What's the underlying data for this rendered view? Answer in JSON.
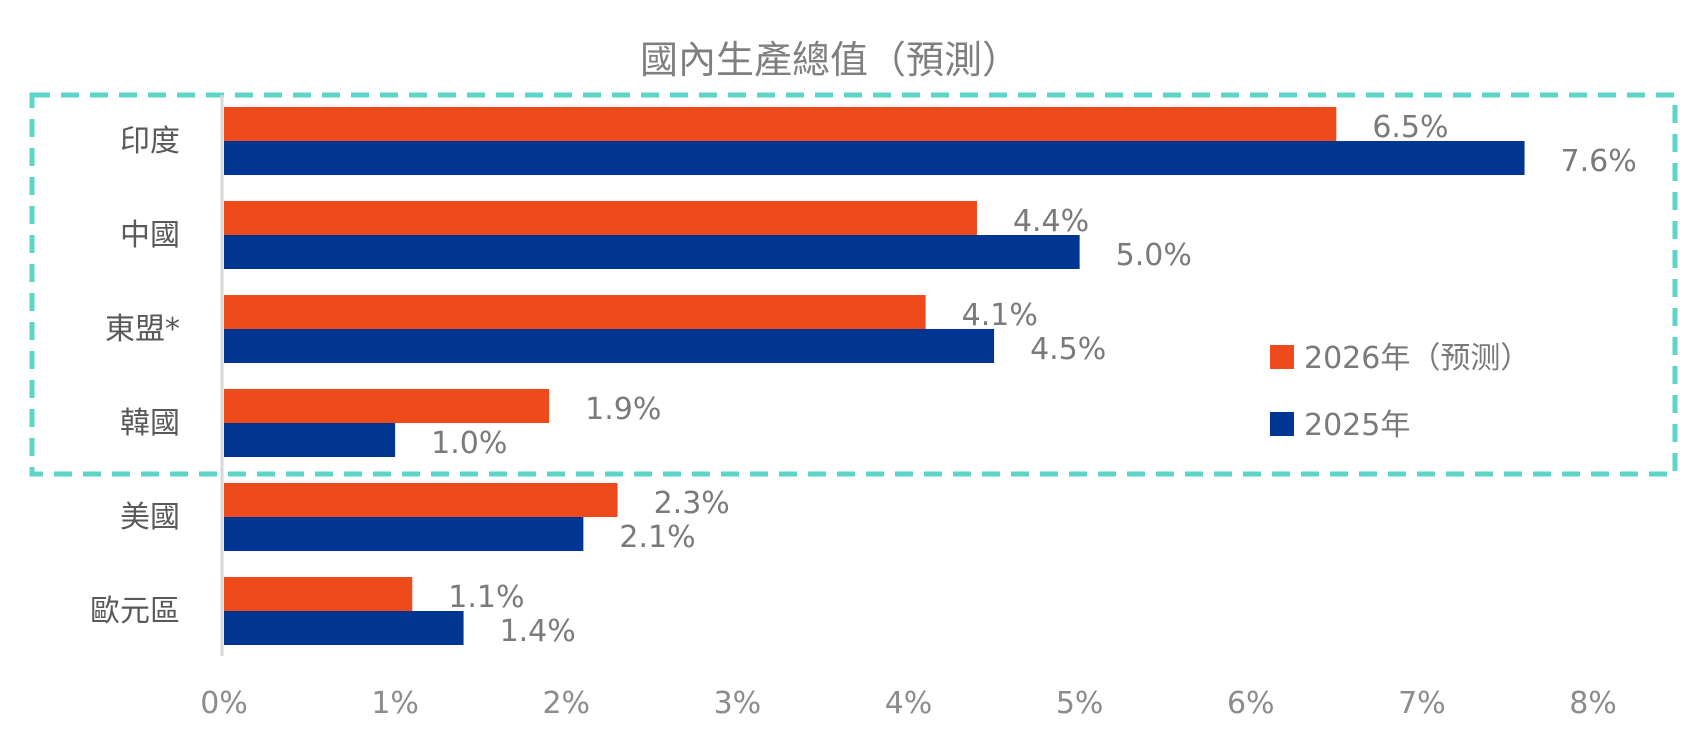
{
  "colors": {
    "forecast_2026": "#EE4B1C",
    "actual_2025": "#003591",
    "highlight_border": "#5DD6C9",
    "axis_line": "#d9d9d9"
  },
  "chart_data": {
    "type": "bar",
    "orientation": "horizontal",
    "title": "國內生產總值（預測）",
    "categories": [
      "印度",
      "中國",
      "東盟*",
      "韓國",
      "美國",
      "歐元區"
    ],
    "series": [
      {
        "name": "2026年（预测）",
        "color": "#EE4B1C",
        "values": [
          6.5,
          4.4,
          4.1,
          1.9,
          2.3,
          1.1
        ],
        "labels": [
          "6.5%",
          "4.4%",
          "4.1%",
          "1.9%",
          "2.3%",
          "1.1%"
        ]
      },
      {
        "name": "2025年",
        "color": "#003591",
        "values": [
          7.6,
          5.0,
          4.5,
          1.0,
          2.1,
          1.4
        ],
        "labels": [
          "7.6%",
          "5.0%",
          "4.5%",
          "1.0%",
          "2.1%",
          "1.4%"
        ]
      }
    ],
    "xlim": [
      0,
      8
    ],
    "xticks": [
      "0%",
      "1%",
      "2%",
      "3%",
      "4%",
      "5%",
      "6%",
      "7%",
      "8%"
    ],
    "grid": false,
    "legend_position": "right",
    "highlighted_categories": [
      "印度",
      "中國",
      "東盟*",
      "韓國"
    ]
  }
}
